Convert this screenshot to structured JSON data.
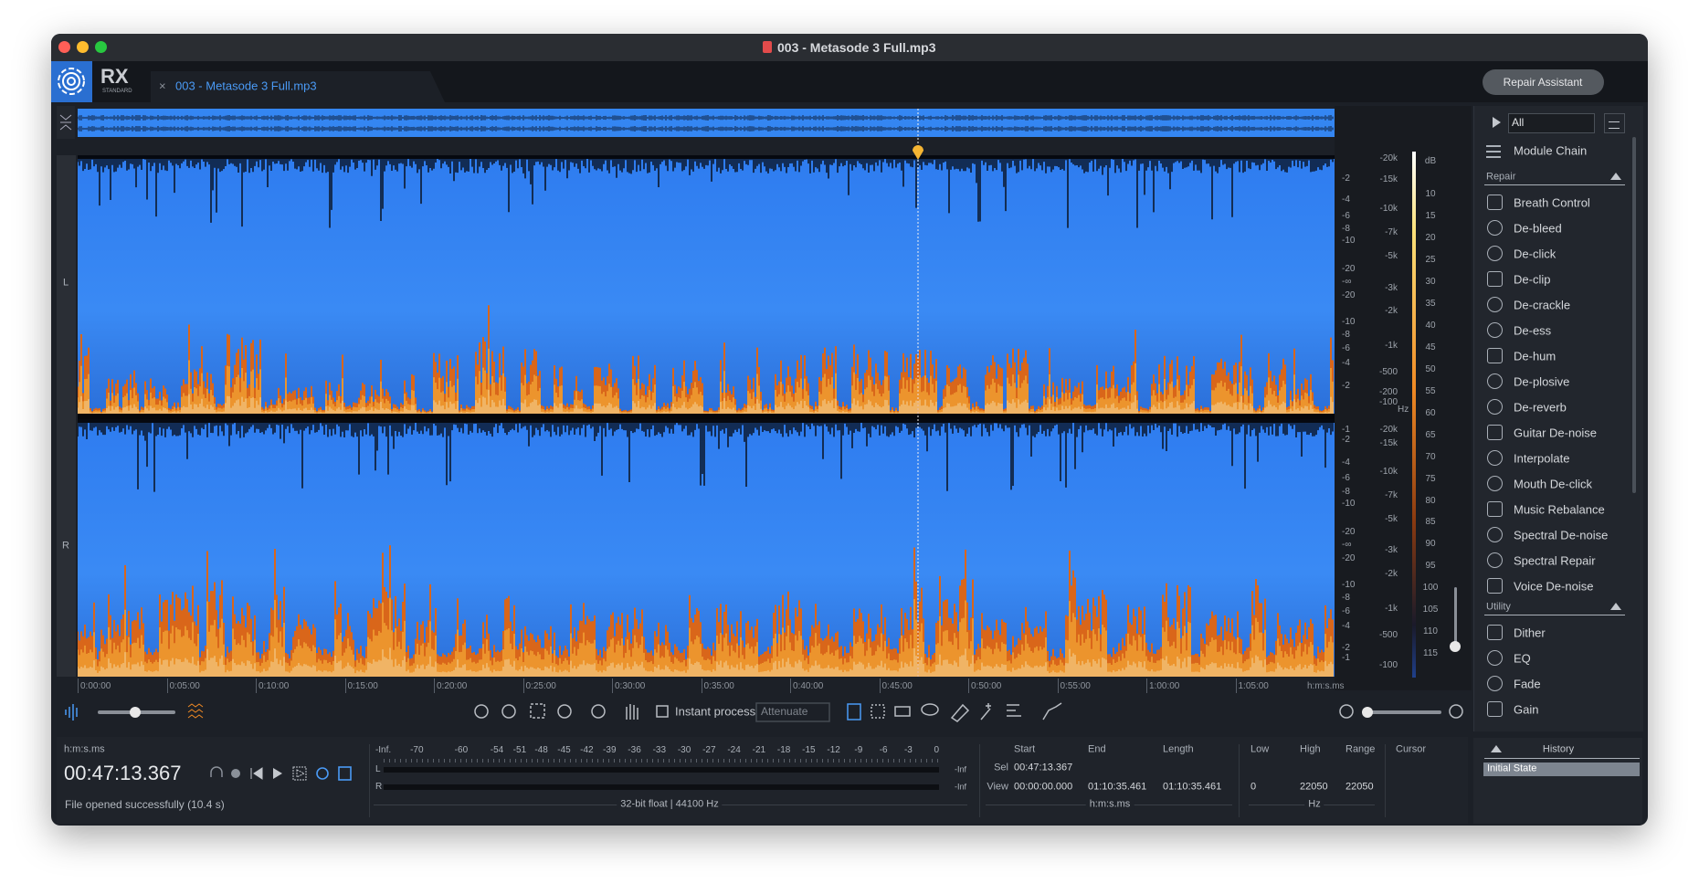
{
  "window": {
    "title": "003 - Metasode 3 Full.mp3"
  },
  "toolbar": {
    "logo": "RX",
    "logo_sub": "STANDARD",
    "tab": "003 - Metasode 3 Full.mp3",
    "repair_assistant": "Repair Assistant"
  },
  "display": {
    "channels": [
      "L",
      "R"
    ],
    "amp_labels_L": [
      "-2",
      "-4",
      "-6",
      "-8",
      "-10",
      "-20",
      "-∞",
      "-20",
      "-10",
      "-8",
      "-6",
      "-4",
      "-2"
    ],
    "amp_labels_R": [
      "-1",
      "-2",
      "-4",
      "-6",
      "-8",
      "-10",
      "-20",
      "-∞",
      "-20",
      "-10",
      "-8",
      "-6",
      "-4",
      "-2",
      "-1"
    ],
    "freq_labels_L": [
      "-20k",
      "-15k",
      "-10k",
      "-7k",
      "-5k",
      "-3k",
      "-2k",
      "-1k",
      "-500",
      "-200",
      "-100"
    ],
    "freq_labels_R": [
      "-20k",
      "-15k",
      "-10k",
      "-7k",
      "-5k",
      "-3k",
      "-2k",
      "-1k",
      "-500",
      "-100"
    ],
    "freq_unit": "Hz",
    "db_title": "dB",
    "db_scale": [
      10,
      15,
      20,
      25,
      30,
      35,
      40,
      45,
      50,
      55,
      60,
      65,
      70,
      75,
      80,
      85,
      90,
      95,
      100,
      105,
      110,
      115
    ],
    "time_labels": [
      "0:00:00",
      "0:05:00",
      "0:10:00",
      "0:15:00",
      "0:20:00",
      "0:25:00",
      "0:30:00",
      "0:35:00",
      "0:40:00",
      "0:45:00",
      "0:50:00",
      "0:55:00",
      "1:00:00",
      "1:05:00"
    ],
    "time_unit": "h:m:s.ms"
  },
  "controls": {
    "instant_process": "Instant process",
    "mode": "Attenuate"
  },
  "status": {
    "time_format": "h:m:s.ms",
    "time": "00:47:13.367",
    "message": "File opened successfully (10.4 s)"
  },
  "meter": {
    "scale": [
      "-Inf.",
      "-70",
      "-60",
      "-54",
      "-51",
      "-48",
      "-45",
      "-42",
      "-39",
      "-36",
      "-33",
      "-30",
      "-27",
      "-24",
      "-21",
      "-18",
      "-15",
      "-12",
      "-9",
      "-6",
      "-3",
      "0"
    ],
    "channels": [
      "L",
      "R"
    ],
    "peak": [
      "-Inf",
      "-Inf"
    ],
    "format": "32-bit float | 44100 Hz"
  },
  "selection": {
    "headers": [
      "Start",
      "End",
      "Length"
    ],
    "rows": [
      {
        "label": "Sel",
        "values": [
          "00:47:13.367"
        ]
      },
      {
        "label": "View",
        "values": [
          "00:00:00.000",
          "01:10:35.461",
          "01:10:35.461"
        ]
      }
    ],
    "unit": "h:m:s.ms"
  },
  "frequency": {
    "headers": [
      "Low",
      "High",
      "Range"
    ],
    "values": [
      0,
      22050,
      22050
    ],
    "unit": "Hz"
  },
  "cursor": "Cursor",
  "modules": {
    "filter": "All",
    "chain": "Module Chain",
    "groups": [
      {
        "name": "Repair",
        "items": [
          "Breath Control",
          "De-bleed",
          "De-click",
          "De-clip",
          "De-crackle",
          "De-ess",
          "De-hum",
          "De-plosive",
          "De-reverb",
          "Guitar De-noise",
          "Interpolate",
          "Mouth De-click",
          "Music Rebalance",
          "Spectral De-noise",
          "Spectral Repair",
          "Voice De-noise"
        ]
      },
      {
        "name": "Utility",
        "items": [
          "Dither",
          "EQ",
          "Fade",
          "Gain"
        ]
      }
    ]
  },
  "history": {
    "title": "History",
    "items": [
      "Initial State"
    ]
  }
}
